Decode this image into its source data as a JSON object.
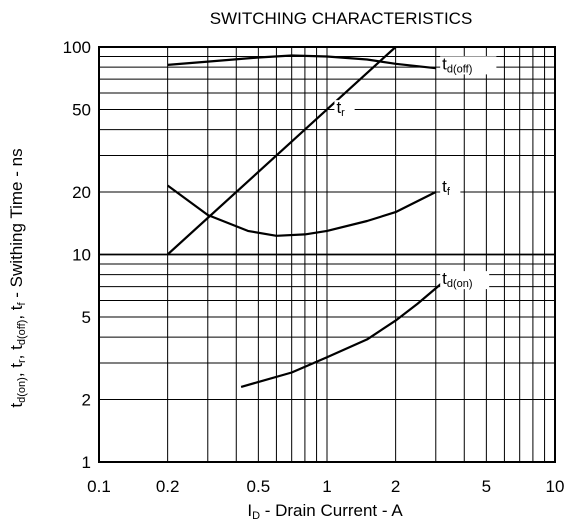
{
  "chart_data": {
    "type": "line",
    "title": "SWITCHING CHARACTERISTICS",
    "xlabel": {
      "pre": "I",
      "sub": "D",
      "post": " - Drain Current - A"
    },
    "ylabel": {
      "parts": [
        {
          "t": "t",
          "s": "d(on)"
        },
        {
          "t": ", t",
          "s": "r"
        },
        {
          "t": ", t",
          "s": "d(off)"
        },
        {
          "t": ", t",
          "s": "f"
        },
        {
          "t": " - Swithing Time - ns",
          "s": ""
        }
      ]
    },
    "x_scale": "log",
    "y_scale": "log",
    "xlim": [
      0.1,
      10
    ],
    "ylim": [
      1,
      100
    ],
    "x_ticks": [
      {
        "v": 0.1,
        "label": "0.1"
      },
      {
        "v": 0.2,
        "label": "0.2"
      },
      {
        "v": 0.5,
        "label": "0.5"
      },
      {
        "v": 1,
        "label": "1"
      },
      {
        "v": 2,
        "label": "2"
      },
      {
        "v": 5,
        "label": "5"
      },
      {
        "v": 10,
        "label": "10"
      }
    ],
    "y_ticks": [
      {
        "v": 1,
        "label": "1"
      },
      {
        "v": 2,
        "label": "2"
      },
      {
        "v": 5,
        "label": "5"
      },
      {
        "v": 10,
        "label": "10"
      },
      {
        "v": 20,
        "label": "20"
      },
      {
        "v": 50,
        "label": "50"
      },
      {
        "v": 100,
        "label": "100"
      }
    ],
    "grid": true,
    "series": [
      {
        "label_main": "t",
        "label_sub": "d(off)",
        "label_at": [
          3.2,
          78
        ],
        "points": [
          [
            0.2,
            82
          ],
          [
            0.3,
            85
          ],
          [
            0.5,
            89
          ],
          [
            0.7,
            91
          ],
          [
            1.0,
            90
          ],
          [
            1.5,
            87
          ],
          [
            2.0,
            83
          ],
          [
            3.0,
            79
          ]
        ]
      },
      {
        "label_main": "t",
        "label_sub": "r",
        "label_at": [
          1.1,
          48
        ],
        "points": [
          [
            0.2,
            10
          ],
          [
            2.0,
            100
          ]
        ]
      },
      {
        "label_main": "t",
        "label_sub": "f",
        "label_at": [
          3.2,
          20
        ],
        "points": [
          [
            0.2,
            21.5
          ],
          [
            0.3,
            15.5
          ],
          [
            0.45,
            13
          ],
          [
            0.6,
            12.3
          ],
          [
            0.8,
            12.5
          ],
          [
            1.0,
            13
          ],
          [
            1.5,
            14.5
          ],
          [
            2.0,
            16
          ],
          [
            3.0,
            20
          ]
        ]
      },
      {
        "label_main": "t",
        "label_sub": "d(on)",
        "label_at": [
          3.2,
          7.2
        ],
        "points": [
          [
            0.42,
            2.3
          ],
          [
            0.7,
            2.7
          ],
          [
            1.0,
            3.2
          ],
          [
            1.5,
            3.9
          ],
          [
            2.0,
            4.8
          ],
          [
            2.5,
            5.8
          ],
          [
            3.2,
            7.3
          ]
        ]
      }
    ]
  }
}
